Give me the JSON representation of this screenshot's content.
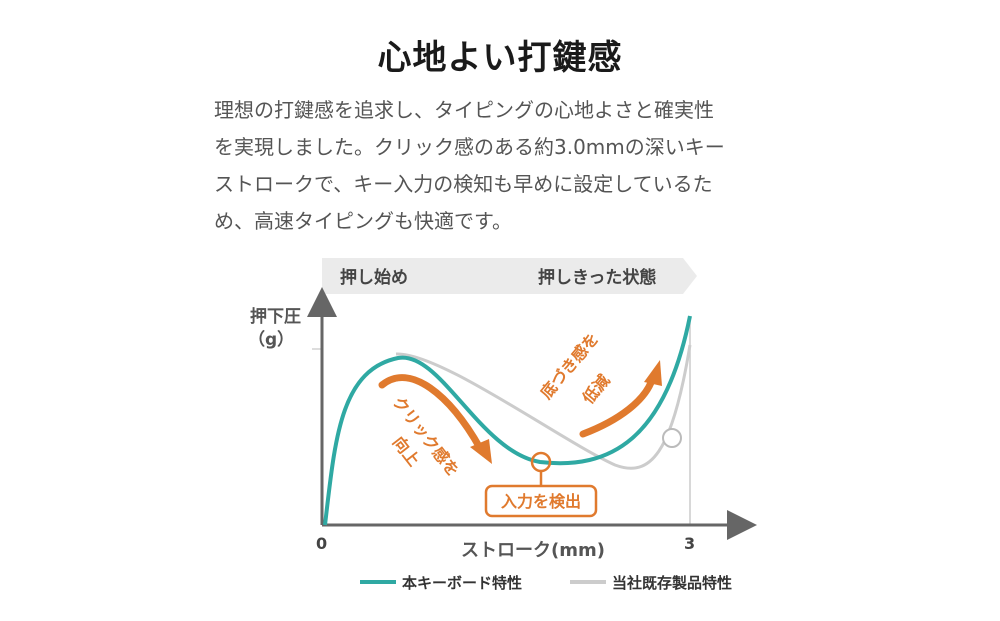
{
  "heading": "心地よい打鍵感",
  "description_lines": [
    "理想の打鍵感を追求し、タイピングの心地よさと確実性",
    "を実現しました。クリック感のある約3.0mmの深いキー",
    "ストロークで、キー入力の検知も早めに設定しているた",
    "め、高速タイピングも快適です。"
  ],
  "diagram": {
    "phase_start": "押し始め",
    "phase_end": "押しきった状態",
    "y_label_line1": "押下圧",
    "y_label_line2": "（g）",
    "x_label": "ストローク(mm)",
    "x_tick_start": "0",
    "x_tick_end": "3",
    "annotation_click": "クリック感を",
    "annotation_click_2": "向上",
    "annotation_bottom": "底づき感を",
    "annotation_bottom_2": "低減",
    "annotation_detect": "入力を検出",
    "legend_this": "本キーボード特性",
    "legend_existing": "当社既存製品特性",
    "colors": {
      "this_product": "#2fa9a3",
      "existing_product": "#cccccc",
      "annotation": "#e07a2e",
      "axis": "#666666",
      "phase_bar": "#ebebeb"
    }
  }
}
